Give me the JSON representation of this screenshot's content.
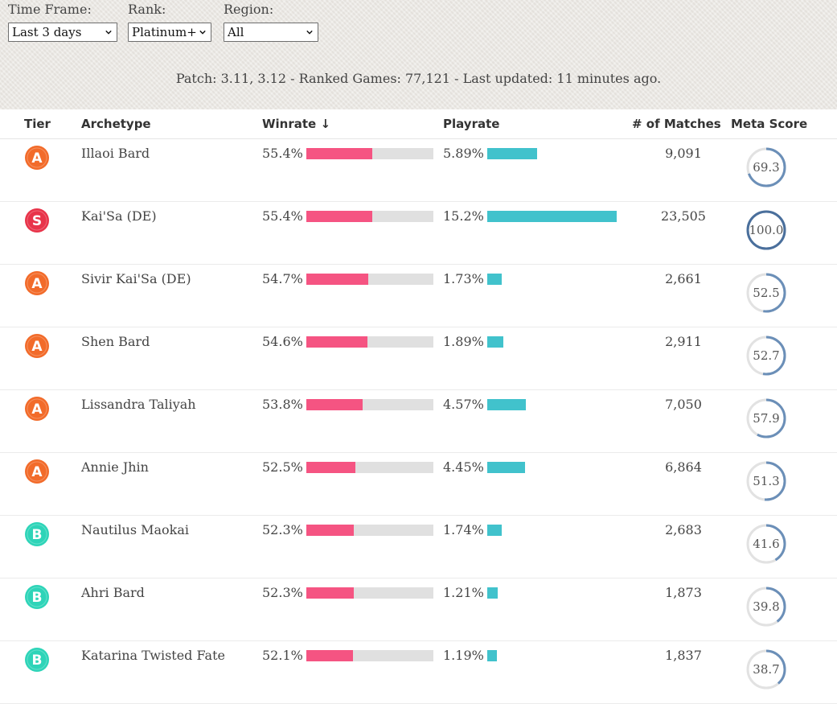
{
  "filters": {
    "time_frame": {
      "label": "Time Frame:",
      "value": "Last 3 days"
    },
    "rank": {
      "label": "Rank:",
      "value": "Platinum+"
    },
    "region": {
      "label": "Region:",
      "value": "All"
    }
  },
  "patch_info": "Patch: 3.11, 3.12 - Ranked Games: 77,121 - Last updated: 11 minutes ago.",
  "columns": {
    "tier": "Tier",
    "archetype": "Archetype",
    "winrate": "Winrate ↓",
    "playrate": "Playrate",
    "matches": "# of Matches",
    "meta_score": "Meta Score"
  },
  "colors": {
    "winrate_bar": "#f55482",
    "playrate_bar": "#41c2cc",
    "tier_S": "#e8344a",
    "tier_A": "#f26b2a",
    "tier_B": "#2ed4b8",
    "meta_ring": "#6b8fb8"
  },
  "rows": [
    {
      "tier": "A",
      "archetype": "Illaoi Bard",
      "winrate": "55.4%",
      "winrate_value": 55.4,
      "playrate": "5.89%",
      "playrate_value": 5.89,
      "matches": "9,091",
      "meta_score": "69.3",
      "meta_value": 69.3
    },
    {
      "tier": "S",
      "archetype": "Kai'Sa (DE)",
      "winrate": "55.4%",
      "winrate_value": 55.4,
      "playrate": "15.2%",
      "playrate_value": 15.2,
      "matches": "23,505",
      "meta_score": "100.0",
      "meta_value": 100.0
    },
    {
      "tier": "A",
      "archetype": "Sivir Kai'Sa (DE)",
      "winrate": "54.7%",
      "winrate_value": 54.7,
      "playrate": "1.73%",
      "playrate_value": 1.73,
      "matches": "2,661",
      "meta_score": "52.5",
      "meta_value": 52.5
    },
    {
      "tier": "A",
      "archetype": "Shen Bard",
      "winrate": "54.6%",
      "winrate_value": 54.6,
      "playrate": "1.89%",
      "playrate_value": 1.89,
      "matches": "2,911",
      "meta_score": "52.7",
      "meta_value": 52.7
    },
    {
      "tier": "A",
      "archetype": "Lissandra Taliyah",
      "winrate": "53.8%",
      "winrate_value": 53.8,
      "playrate": "4.57%",
      "playrate_value": 4.57,
      "matches": "7,050",
      "meta_score": "57.9",
      "meta_value": 57.9
    },
    {
      "tier": "A",
      "archetype": "Annie Jhin",
      "winrate": "52.5%",
      "winrate_value": 52.5,
      "playrate": "4.45%",
      "playrate_value": 4.45,
      "matches": "6,864",
      "meta_score": "51.3",
      "meta_value": 51.3
    },
    {
      "tier": "B",
      "archetype": "Nautilus Maokai",
      "winrate": "52.3%",
      "winrate_value": 52.3,
      "playrate": "1.74%",
      "playrate_value": 1.74,
      "matches": "2,683",
      "meta_score": "41.6",
      "meta_value": 41.6
    },
    {
      "tier": "B",
      "archetype": "Ahri Bard",
      "winrate": "52.3%",
      "winrate_value": 52.3,
      "playrate": "1.21%",
      "playrate_value": 1.21,
      "matches": "1,873",
      "meta_score": "39.8",
      "meta_value": 39.8
    },
    {
      "tier": "B",
      "archetype": "Katarina Twisted Fate",
      "winrate": "52.1%",
      "winrate_value": 52.1,
      "playrate": "1.19%",
      "playrate_value": 1.19,
      "matches": "1,837",
      "meta_score": "38.7",
      "meta_value": 38.7
    }
  ]
}
